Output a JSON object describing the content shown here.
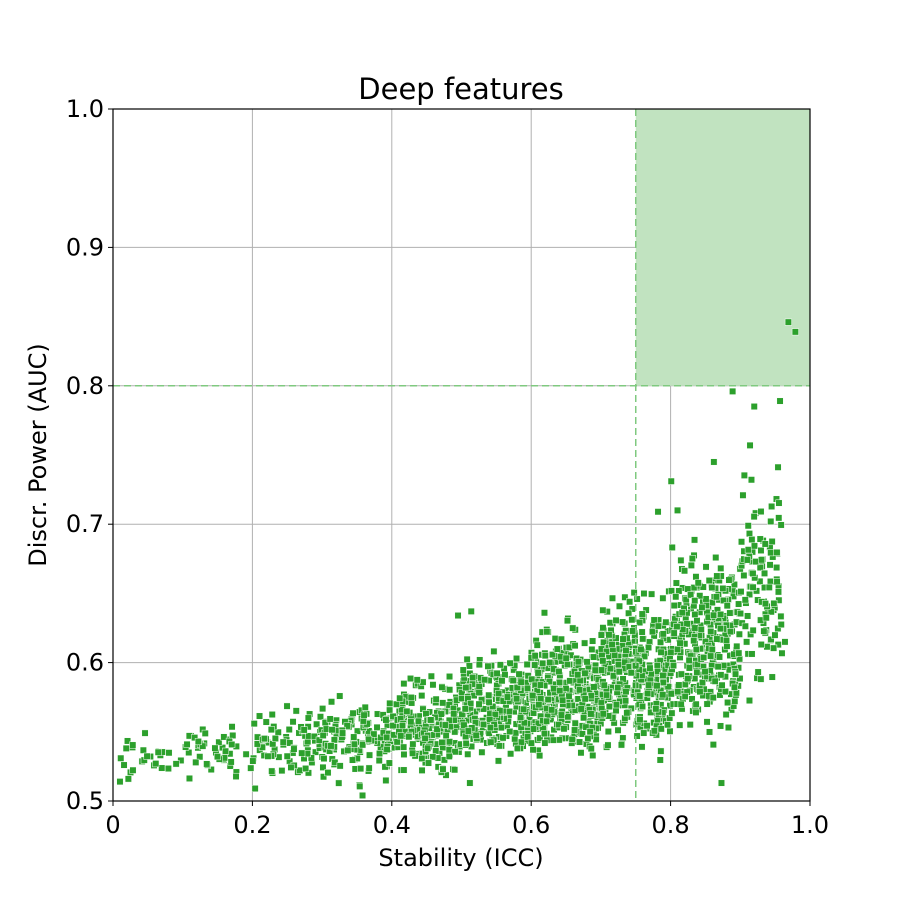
{
  "chart_data": {
    "type": "scatter",
    "title": "Deep features",
    "xlabel": "Stability (ICC)",
    "ylabel": "Discr. Power (AUC)",
    "xlim": [
      0,
      1.0
    ],
    "ylim": [
      0.5,
      1.0
    ],
    "xticks": [
      0,
      0.2,
      0.4,
      0.6,
      0.8,
      1.0
    ],
    "xtick_labels": [
      "0",
      "0.2",
      "0.4",
      "0.6",
      "0.8",
      "1.0"
    ],
    "yticks": [
      0.5,
      0.6,
      0.7,
      0.8,
      0.9,
      1.0
    ],
    "ytick_labels": [
      "0.5",
      "0.6",
      "0.7",
      "0.8",
      "0.9",
      "1.0"
    ],
    "grid": true,
    "marker": "square",
    "point_color": "#2ca02c",
    "threshold_x": 0.75,
    "threshold_y": 0.8,
    "region_color": "#c1e3c0",
    "threshold_line_color": "#7fc97f",
    "highlight_region": {
      "x": [
        0.75,
        1.0
      ],
      "y": [
        0.8,
        1.0
      ]
    },
    "points_notable": [
      {
        "x": 0.969,
        "y": 0.846
      },
      {
        "x": 0.979,
        "y": 0.839
      },
      {
        "x": 0.889,
        "y": 0.796
      },
      {
        "x": 0.957,
        "y": 0.789
      },
      {
        "x": 0.92,
        "y": 0.785
      },
      {
        "x": 0.914,
        "y": 0.757
      },
      {
        "x": 0.862,
        "y": 0.745
      },
      {
        "x": 0.801,
        "y": 0.731
      },
      {
        "x": 0.81,
        "y": 0.71
      },
      {
        "x": 0.782,
        "y": 0.709
      },
      {
        "x": 0.964,
        "y": 0.615
      },
      {
        "x": 0.873,
        "y": 0.513
      },
      {
        "x": 0.514,
        "y": 0.637
      },
      {
        "x": 0.495,
        "y": 0.634
      },
      {
        "x": 0.619,
        "y": 0.636
      },
      {
        "x": 0.046,
        "y": 0.549
      },
      {
        "x": 0.01,
        "y": 0.514
      },
      {
        "x": 0.022,
        "y": 0.516
      },
      {
        "x": 0.358,
        "y": 0.504
      },
      {
        "x": 0.204,
        "y": 0.509
      },
      {
        "x": 0.512,
        "y": 0.513
      }
    ],
    "cloud": [
      {
        "x_min": 0.0,
        "x_max": 0.1,
        "count": 25,
        "y_min": 0.51,
        "y_max": 0.55
      },
      {
        "x_min": 0.1,
        "x_max": 0.2,
        "count": 45,
        "y_min": 0.51,
        "y_max": 0.56
      },
      {
        "x_min": 0.2,
        "x_max": 0.3,
        "count": 80,
        "y_min": 0.51,
        "y_max": 0.575
      },
      {
        "x_min": 0.3,
        "x_max": 0.4,
        "count": 140,
        "y_min": 0.505,
        "y_max": 0.585
      },
      {
        "x_min": 0.4,
        "x_max": 0.5,
        "count": 220,
        "y_min": 0.51,
        "y_max": 0.6
      },
      {
        "x_min": 0.5,
        "x_max": 0.6,
        "count": 300,
        "y_min": 0.515,
        "y_max": 0.615
      },
      {
        "x_min": 0.6,
        "x_max": 0.7,
        "count": 380,
        "y_min": 0.515,
        "y_max": 0.64
      },
      {
        "x_min": 0.7,
        "x_max": 0.8,
        "count": 400,
        "y_min": 0.52,
        "y_max": 0.665
      },
      {
        "x_min": 0.8,
        "x_max": 0.9,
        "count": 330,
        "y_min": 0.53,
        "y_max": 0.7
      },
      {
        "x_min": 0.9,
        "x_max": 0.96,
        "count": 110,
        "y_min": 0.55,
        "y_max": 0.76
      }
    ]
  }
}
